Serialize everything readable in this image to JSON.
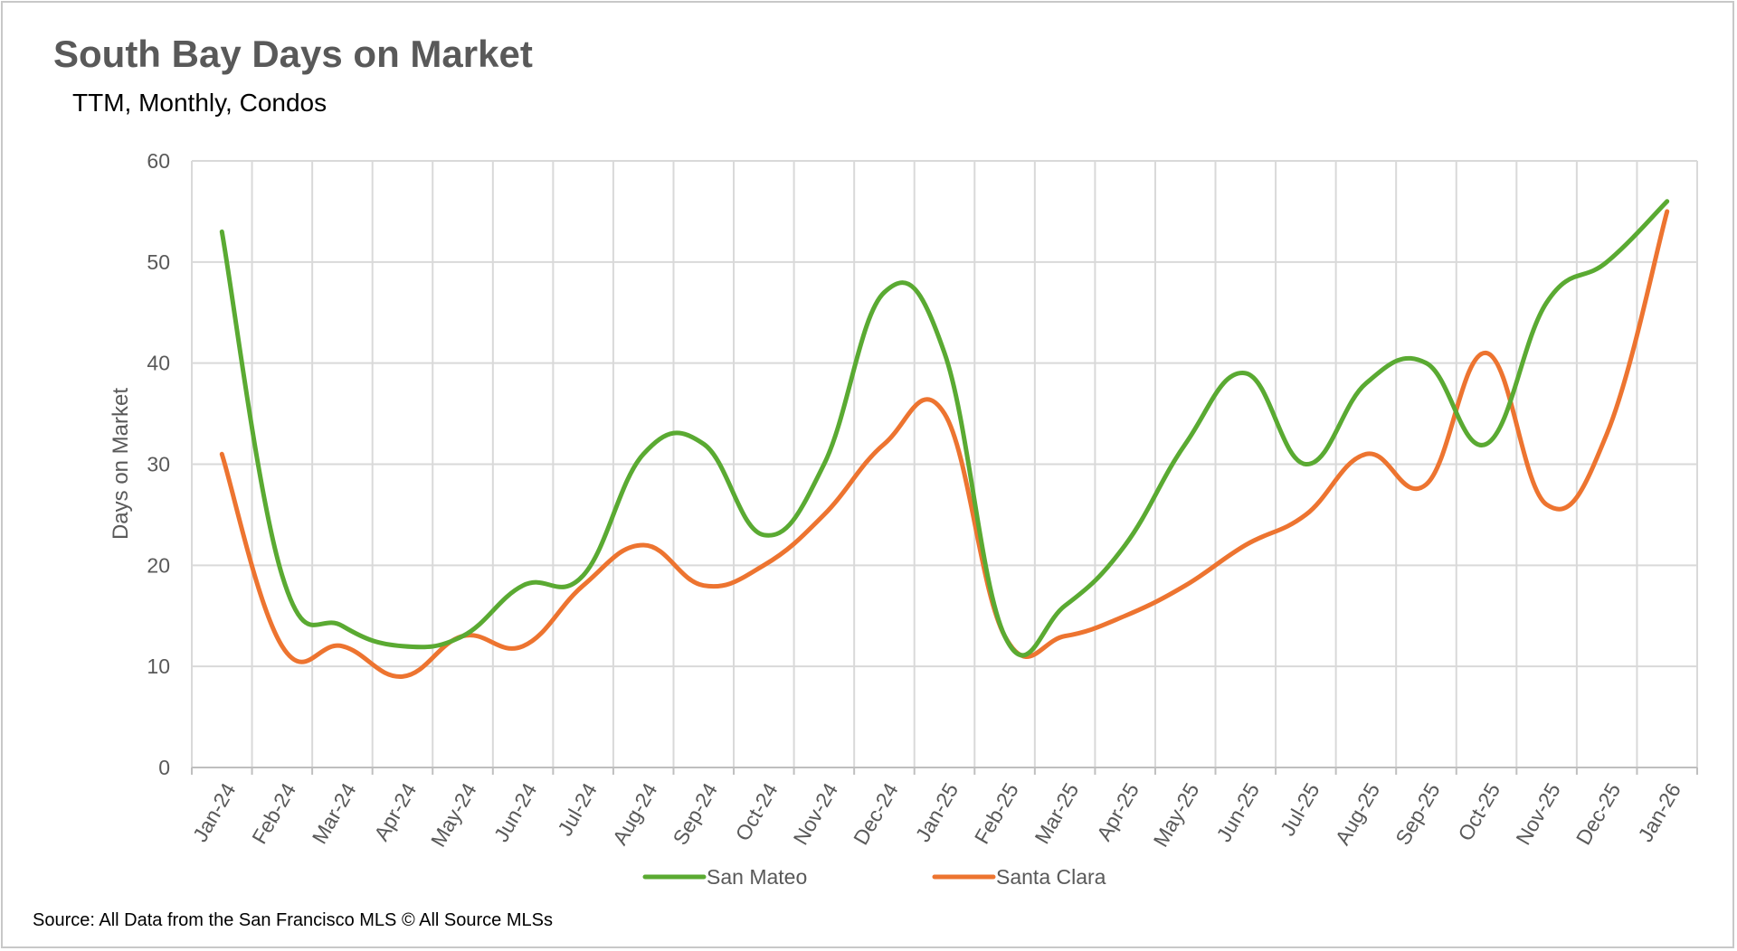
{
  "chart_data": {
    "type": "line",
    "title": "South Bay Days on Market",
    "subtitle": "TTM, Monthly, Condos",
    "xlabel": "",
    "ylabel": "Days on Market",
    "ylim": [
      0,
      60
    ],
    "yticks": [
      0,
      10,
      20,
      30,
      40,
      50,
      60
    ],
    "grid": true,
    "smooth": true,
    "legend_position": "bottom",
    "categories": [
      "Jan-24",
      "Feb-24",
      "Mar-24",
      "Apr-24",
      "May-24",
      "Jun-24",
      "Jul-24",
      "Aug-24",
      "Sep-24",
      "Oct-24",
      "Nov-24",
      "Dec-24",
      "Jan-25",
      "Feb-25",
      "Mar-25",
      "Apr-25",
      "May-25",
      "Jun-25",
      "Jul-25",
      "Aug-25",
      "Sep-25",
      "Oct-25",
      "Nov-25",
      "Dec-25",
      "Jan-26"
    ],
    "series": [
      {
        "name": "San Mateo",
        "color": "#5aaa32",
        "values": [
          53,
          19,
          14,
          12,
          13,
          18,
          19,
          31,
          32,
          23,
          30,
          47,
          41,
          13,
          16,
          22,
          32,
          39,
          30,
          38,
          40,
          32,
          46,
          50,
          56
        ]
      },
      {
        "name": "Santa Clara",
        "color": "#ed7430",
        "values": [
          31,
          12,
          12,
          9,
          13,
          12,
          18,
          22,
          18,
          20,
          25,
          32,
          35,
          13,
          13,
          15,
          18,
          22,
          25,
          31,
          28,
          41,
          26,
          33,
          55
        ]
      }
    ],
    "source": "Source: All Data from the San Francisco MLS © All Source MLSs"
  }
}
